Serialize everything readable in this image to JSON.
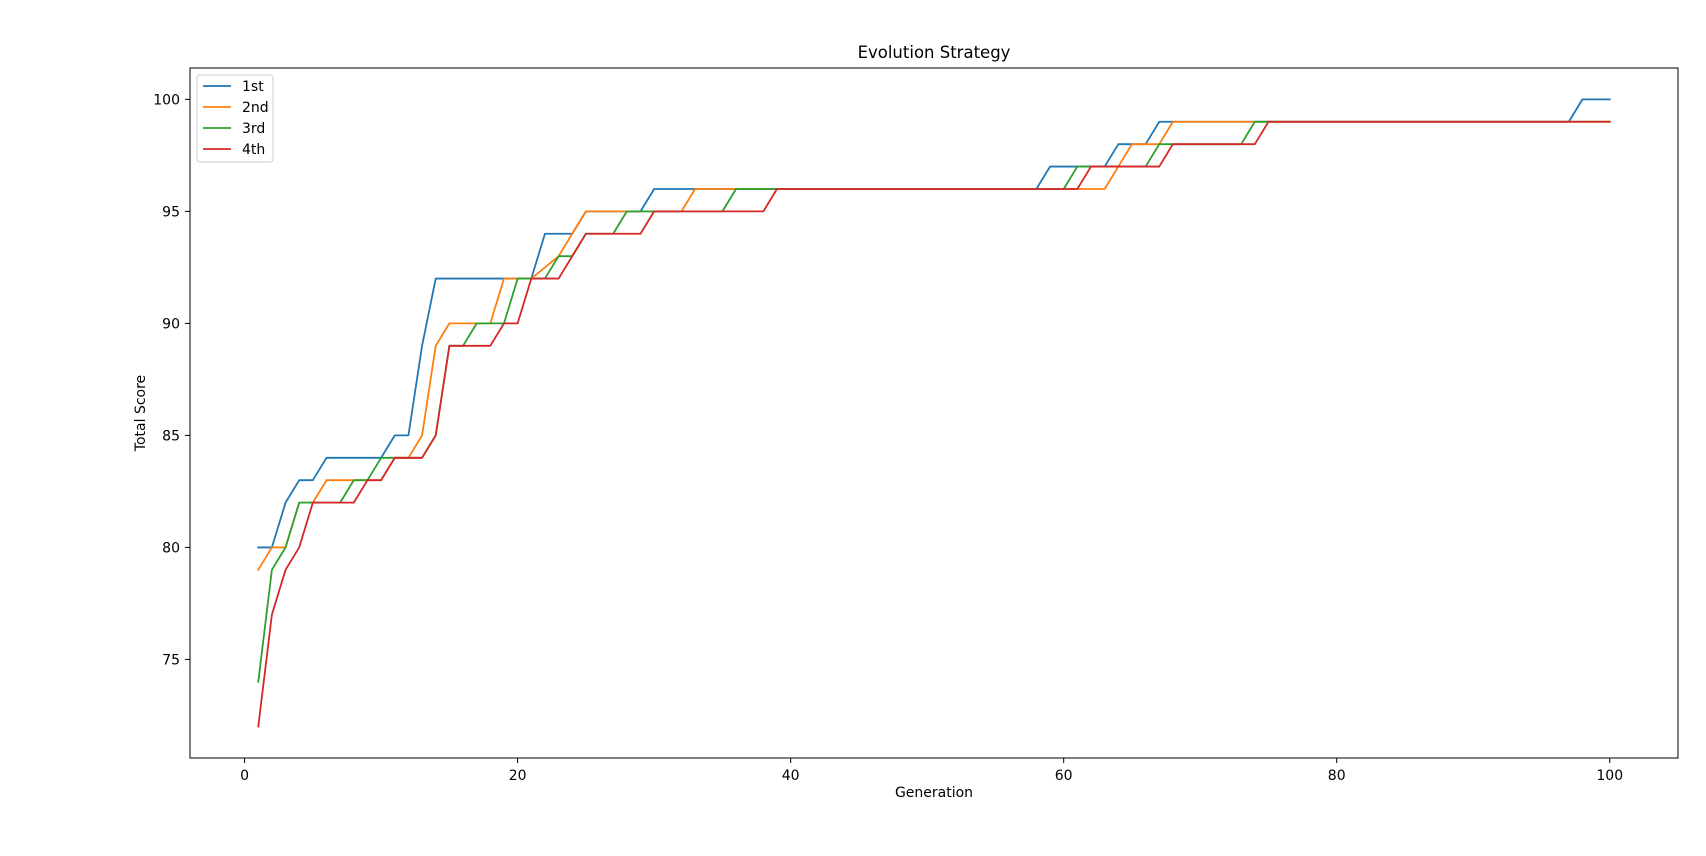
{
  "chart_data": {
    "type": "line",
    "title": "Evolution Strategy",
    "xlabel": "Generation",
    "ylabel": "Total Score",
    "xlim": [
      -4,
      105
    ],
    "ylim": [
      70.6,
      101.4
    ],
    "xticks": [
      0,
      20,
      40,
      60,
      80,
      100
    ],
    "yticks": [
      75,
      80,
      85,
      90,
      95,
      100
    ],
    "grid": false,
    "legend_position": "upper-left",
    "series": [
      {
        "name": "1st",
        "color": "#1f77b4",
        "points": [
          [
            1,
            80
          ],
          [
            2,
            80
          ],
          [
            3,
            82
          ],
          [
            4,
            83
          ],
          [
            5,
            83
          ],
          [
            6,
            84
          ],
          [
            10,
            84
          ],
          [
            11,
            85
          ],
          [
            12,
            85
          ],
          [
            13,
            89
          ],
          [
            14,
            92
          ],
          [
            20,
            92
          ],
          [
            21,
            92
          ],
          [
            22,
            94
          ],
          [
            24,
            94
          ],
          [
            25,
            95
          ],
          [
            29,
            95
          ],
          [
            30,
            96
          ],
          [
            58,
            96
          ],
          [
            59,
            97
          ],
          [
            63,
            97
          ],
          [
            64,
            98
          ],
          [
            66,
            98
          ],
          [
            67,
            99
          ],
          [
            68,
            99
          ],
          [
            97,
            99
          ],
          [
            98,
            100
          ],
          [
            100,
            100
          ]
        ]
      },
      {
        "name": "2nd",
        "color": "#ff7f0e",
        "points": [
          [
            1,
            79
          ],
          [
            2,
            80
          ],
          [
            3,
            80
          ],
          [
            4,
            82
          ],
          [
            5,
            82
          ],
          [
            6,
            83
          ],
          [
            10,
            83
          ],
          [
            11,
            84
          ],
          [
            12,
            84
          ],
          [
            13,
            85
          ],
          [
            14,
            89
          ],
          [
            15,
            90
          ],
          [
            18,
            90
          ],
          [
            19,
            92
          ],
          [
            21,
            92
          ],
          [
            23,
            93
          ],
          [
            24,
            94
          ],
          [
            25,
            95
          ],
          [
            28,
            95
          ],
          [
            29,
            95
          ],
          [
            32,
            95
          ],
          [
            33,
            96
          ],
          [
            63,
            96
          ],
          [
            64,
            97
          ],
          [
            65,
            98
          ],
          [
            67,
            98
          ],
          [
            68,
            99
          ],
          [
            100,
            99
          ]
        ]
      },
      {
        "name": "3rd",
        "color": "#2ca02c",
        "points": [
          [
            1,
            74
          ],
          [
            2,
            79
          ],
          [
            3,
            80
          ],
          [
            4,
            82
          ],
          [
            7,
            82
          ],
          [
            8,
            83
          ],
          [
            9,
            83
          ],
          [
            10,
            84
          ],
          [
            13,
            84
          ],
          [
            14,
            85
          ],
          [
            15,
            89
          ],
          [
            16,
            89
          ],
          [
            17,
            90
          ],
          [
            19,
            90
          ],
          [
            20,
            92
          ],
          [
            22,
            92
          ],
          [
            23,
            93
          ],
          [
            24,
            93
          ],
          [
            25,
            94
          ],
          [
            27,
            94
          ],
          [
            28,
            95
          ],
          [
            30,
            95
          ],
          [
            35,
            95
          ],
          [
            36,
            96
          ],
          [
            60,
            96
          ],
          [
            61,
            97
          ],
          [
            66,
            97
          ],
          [
            67,
            98
          ],
          [
            73,
            98
          ],
          [
            74,
            99
          ],
          [
            100,
            99
          ]
        ]
      },
      {
        "name": "4th",
        "color": "#d62728",
        "points": [
          [
            1,
            72
          ],
          [
            2,
            77
          ],
          [
            3,
            79
          ],
          [
            4,
            80
          ],
          [
            5,
            82
          ],
          [
            8,
            82
          ],
          [
            9,
            83
          ],
          [
            10,
            83
          ],
          [
            11,
            84
          ],
          [
            13,
            84
          ],
          [
            14,
            85
          ],
          [
            15,
            89
          ],
          [
            18,
            89
          ],
          [
            19,
            90
          ],
          [
            20,
            90
          ],
          [
            21,
            92
          ],
          [
            23,
            92
          ],
          [
            25,
            94
          ],
          [
            29,
            94
          ],
          [
            30,
            95
          ],
          [
            38,
            95
          ],
          [
            39,
            96
          ],
          [
            61,
            96
          ],
          [
            62,
            97
          ],
          [
            67,
            97
          ],
          [
            68,
            98
          ],
          [
            74,
            98
          ],
          [
            75,
            99
          ],
          [
            100,
            99
          ]
        ]
      }
    ]
  }
}
